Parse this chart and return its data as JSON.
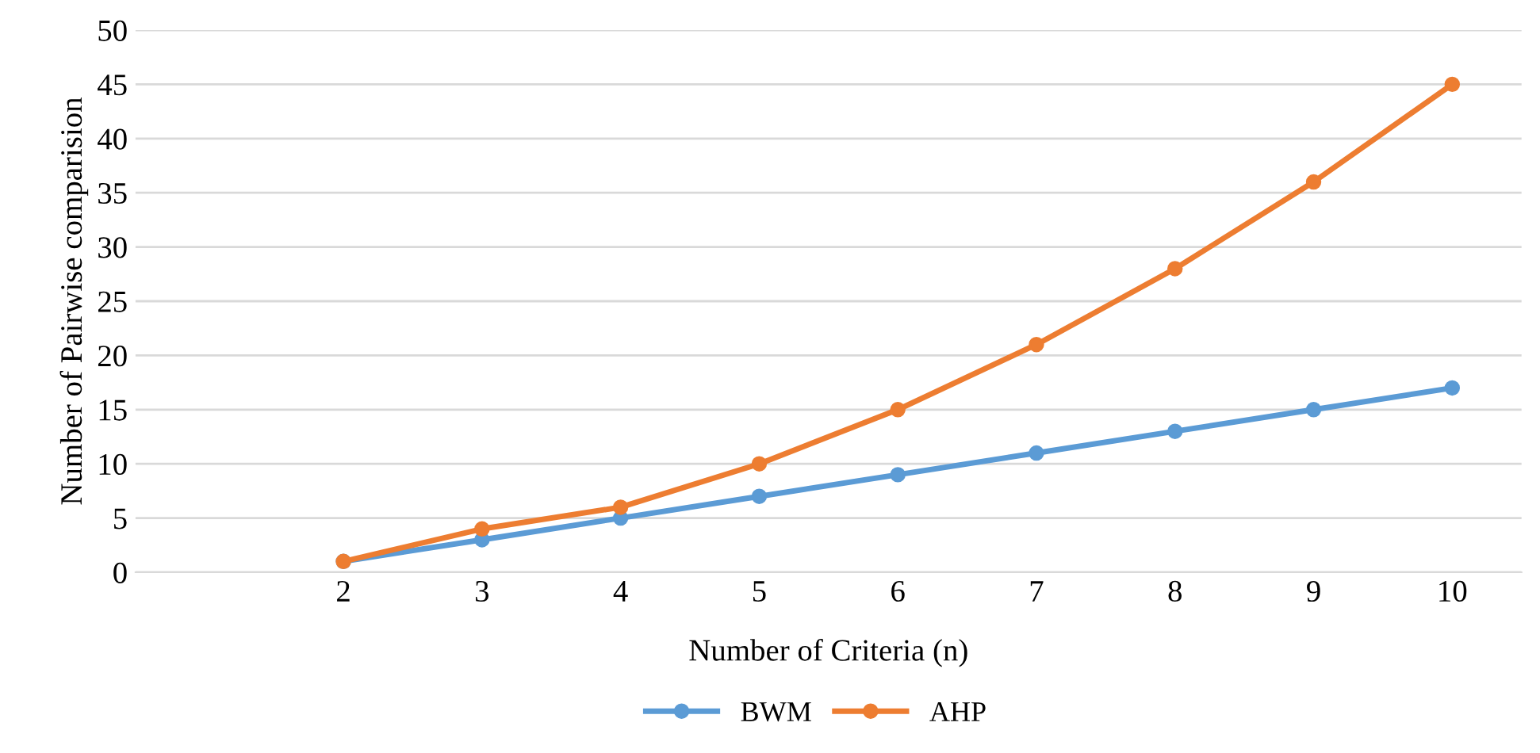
{
  "chart_data": {
    "type": "line",
    "xlabel": "Number of Criteria (n)",
    "ylabel": "Number of Pairwise comparision",
    "categories": [
      null,
      "2",
      "3",
      "4",
      "5",
      "6",
      "7",
      "8",
      "9",
      "10"
    ],
    "series": [
      {
        "name": "BWM",
        "color": "#5b9bd5",
        "values": [
          null,
          1,
          3,
          5,
          7,
          9,
          11,
          13,
          15,
          17
        ]
      },
      {
        "name": "AHP",
        "color": "#ed7d31",
        "values": [
          null,
          1,
          4,
          6,
          10,
          15,
          21,
          28,
          36,
          45
        ]
      }
    ],
    "ylim": [
      0,
      50
    ],
    "yticks": [
      0,
      5,
      10,
      15,
      20,
      25,
      30,
      35,
      40,
      45,
      50
    ],
    "grid": "y",
    "legend": "bottom",
    "marker": "circle",
    "line_style": "solid"
  }
}
